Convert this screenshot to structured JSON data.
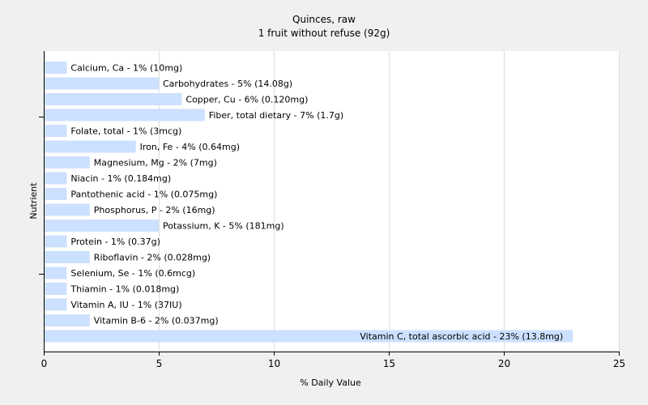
{
  "chart_data": {
    "type": "bar",
    "orientation": "horizontal",
    "title": "Quinces, raw",
    "subtitle": "1 fruit without refuse (92g)",
    "xlabel": "% Daily Value",
    "ylabel": "Nutrient",
    "xlim": [
      0,
      25
    ],
    "xticks": [
      0,
      5,
      10,
      15,
      20,
      25
    ],
    "grid": true,
    "bar_color": "#cce0ff",
    "grid_color": "#dddddd",
    "categories": [
      "Calcium, Ca",
      "Carbohydrates",
      "Copper, Cu",
      "Fiber, total dietary",
      "Folate, total",
      "Iron, Fe",
      "Magnesium, Mg",
      "Niacin",
      "Pantothenic acid",
      "Phosphorus, P",
      "Potassium, K",
      "Protein",
      "Riboflavin",
      "Selenium, Se",
      "Thiamin",
      "Vitamin A, IU",
      "Vitamin B-6",
      "Vitamin C, total ascorbic acid"
    ],
    "values": [
      1,
      5,
      6,
      7,
      1,
      4,
      2,
      1,
      1,
      2,
      5,
      1,
      2,
      1,
      1,
      1,
      2,
      23
    ],
    "labels": [
      "Calcium, Ca - 1% (10mg)",
      "Carbohydrates - 5% (14.08g)",
      "Copper, Cu - 6% (0.120mg)",
      "Fiber, total dietary - 7% (1.7g)",
      "Folate, total - 1% (3mcg)",
      "Iron, Fe - 4% (0.64mg)",
      "Magnesium, Mg - 2% (7mg)",
      "Niacin - 1% (0.184mg)",
      "Pantothenic acid - 1% (0.075mg)",
      "Phosphorus, P - 2% (16mg)",
      "Potassium, K - 5% (181mg)",
      "Protein - 1% (0.37g)",
      "Riboflavin - 2% (0.028mg)",
      "Selenium, Se - 1% (0.6mcg)",
      "Thiamin - 1% (0.018mg)",
      "Vitamin A, IU - 1% (37IU)",
      "Vitamin B-6 - 2% (0.037mg)",
      "Vitamin C, total ascorbic acid - 23% (13.8mg)"
    ]
  }
}
